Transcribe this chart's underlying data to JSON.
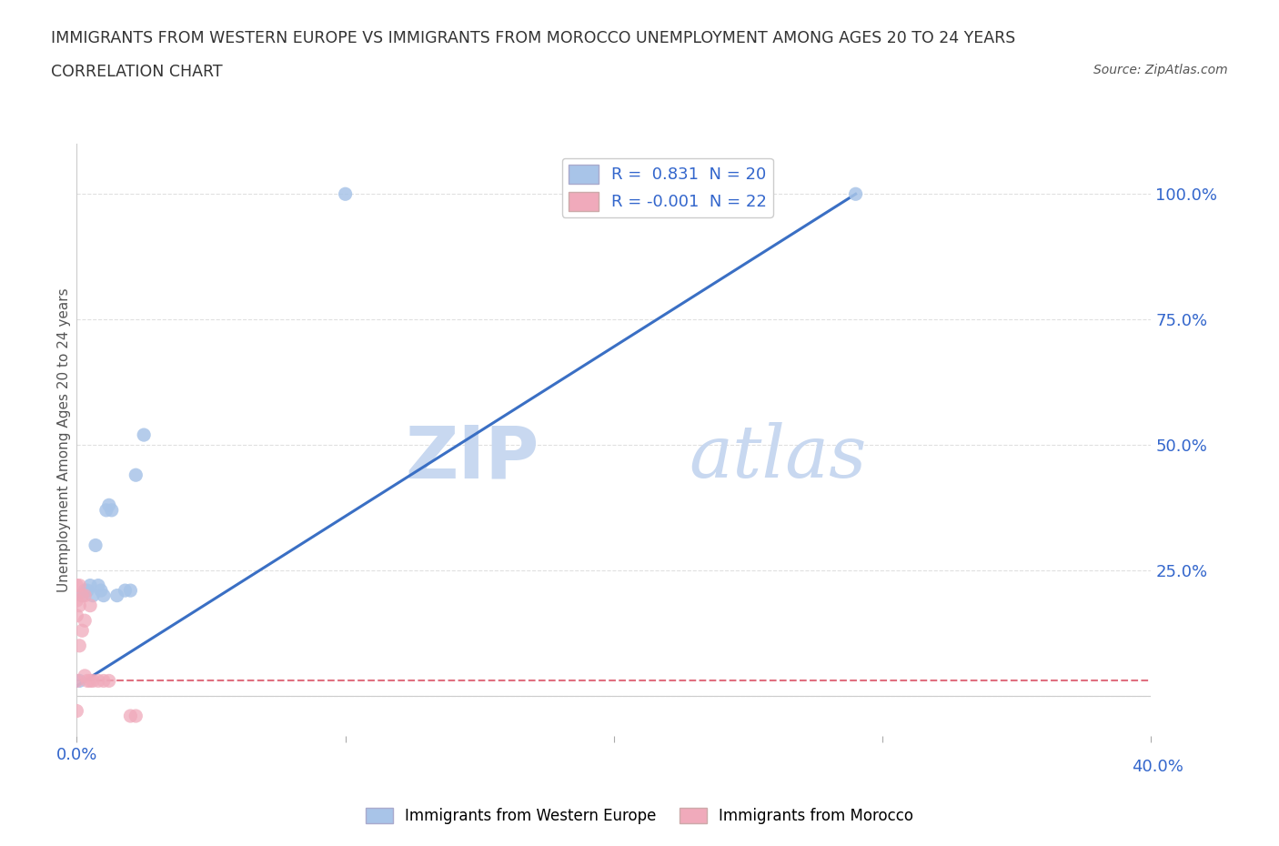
{
  "title_line1": "IMMIGRANTS FROM WESTERN EUROPE VS IMMIGRANTS FROM MOROCCO UNEMPLOYMENT AMONG AGES 20 TO 24 YEARS",
  "title_line2": "CORRELATION CHART",
  "source": "Source: ZipAtlas.com",
  "ylabel": "Unemployment Among Ages 20 to 24 years",
  "xlim": [
    0.0,
    0.4
  ],
  "ylim": [
    -0.08,
    1.1
  ],
  "x_ticks": [
    0.0,
    0.1,
    0.2,
    0.3,
    0.4
  ],
  "y_ticks": [
    0.0,
    0.25,
    0.5,
    0.75,
    1.0
  ],
  "blue_scatter_x": [
    0.001,
    0.002,
    0.003,
    0.004,
    0.005,
    0.006,
    0.007,
    0.008,
    0.009,
    0.01,
    0.011,
    0.012,
    0.013,
    0.015,
    0.018,
    0.02,
    0.022,
    0.025,
    0.1,
    0.29
  ],
  "blue_scatter_y": [
    0.03,
    0.2,
    0.21,
    0.21,
    0.22,
    0.2,
    0.3,
    0.22,
    0.21,
    0.2,
    0.37,
    0.38,
    0.37,
    0.2,
    0.21,
    0.21,
    0.44,
    0.52,
    1.0,
    1.0
  ],
  "pink_scatter_x": [
    0.0,
    0.0,
    0.0,
    0.0,
    0.0,
    0.001,
    0.001,
    0.001,
    0.002,
    0.002,
    0.003,
    0.003,
    0.003,
    0.004,
    0.005,
    0.005,
    0.006,
    0.008,
    0.01,
    0.012,
    0.02,
    0.022
  ],
  "pink_scatter_y": [
    0.22,
    0.19,
    0.16,
    0.03,
    -0.03,
    0.22,
    0.18,
    0.1,
    0.2,
    0.13,
    0.2,
    0.15,
    0.04,
    0.03,
    0.18,
    0.03,
    0.03,
    0.03,
    0.03,
    0.03,
    -0.04,
    -0.04
  ],
  "blue_color": "#a8c4e8",
  "pink_color": "#f0aabb",
  "blue_line_color": "#3a6fc4",
  "pink_line_color": "#e07080",
  "regression_line_x": [
    0.0,
    0.29
  ],
  "regression_line_y": [
    0.02,
    1.0
  ],
  "pink_line_x": [
    0.0,
    0.4
  ],
  "pink_line_y": [
    0.03,
    0.03
  ],
  "R_blue": "0.831",
  "N_blue": "20",
  "R_pink": "-0.001",
  "N_pink": "22",
  "watermark_zip": "ZIP",
  "watermark_atlas": "atlas",
  "watermark_color": "#c8d8f0",
  "background_color": "#ffffff",
  "grid_color": "#e0e0e0",
  "title_color": "#333333",
  "axis_label_color": "#3366cc",
  "tick_label_color": "#3366cc"
}
